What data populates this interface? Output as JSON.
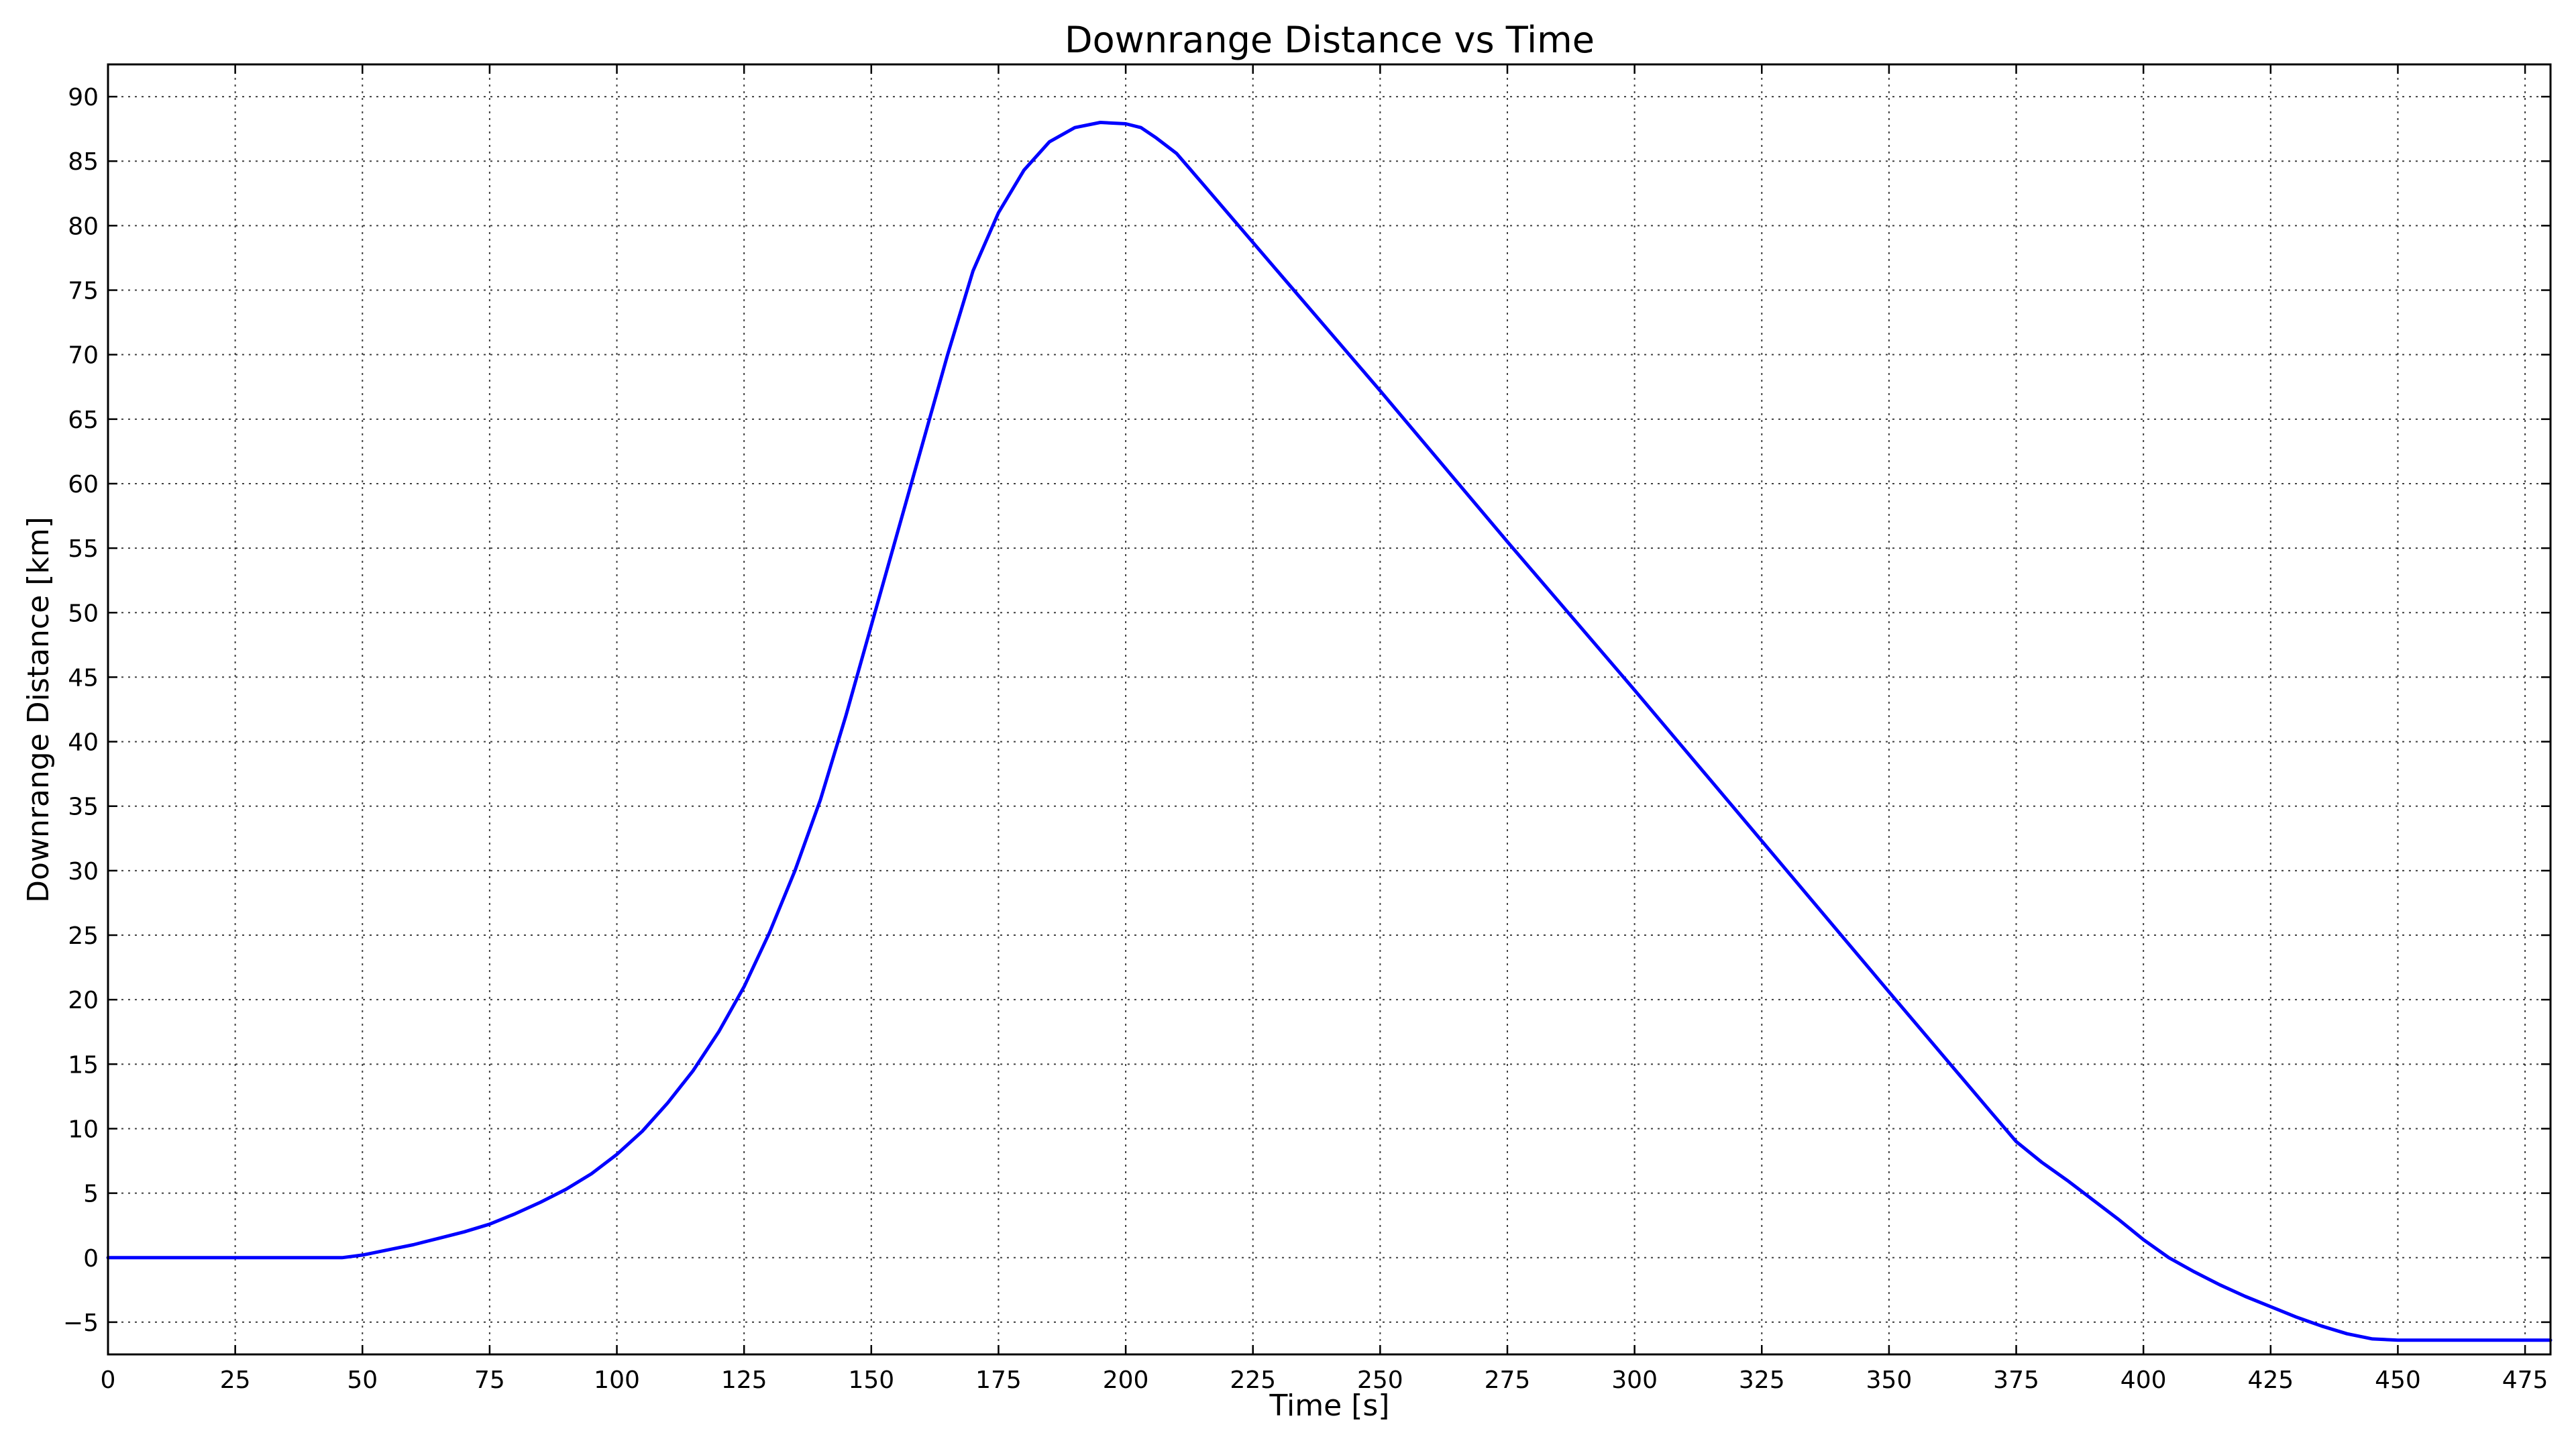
{
  "chart_data": {
    "type": "line",
    "title": "Downrange Distance vs Time",
    "xlabel": "Time [s]",
    "ylabel": "Downrange Distance [km]",
    "xlim": [
      0,
      480
    ],
    "ylim": [
      -7.5,
      92.5
    ],
    "xticks": [
      0,
      25,
      50,
      75,
      100,
      125,
      150,
      175,
      200,
      225,
      250,
      275,
      300,
      325,
      350,
      375,
      400,
      425,
      450,
      475
    ],
    "yticks": [
      -5,
      0,
      5,
      10,
      15,
      20,
      25,
      30,
      35,
      40,
      45,
      50,
      55,
      60,
      65,
      70,
      75,
      80,
      85,
      90
    ],
    "grid": true,
    "series": [
      {
        "color": "#0000ff",
        "x": [
          0,
          10,
          20,
          30,
          40,
          46,
          50,
          55,
          60,
          65,
          70,
          75,
          80,
          85,
          90,
          95,
          100,
          105,
          110,
          115,
          120,
          125,
          130,
          135,
          140,
          145,
          150,
          155,
          160,
          165,
          170,
          175,
          180,
          185,
          190,
          195,
          200,
          203,
          206,
          210,
          215,
          220,
          225,
          250,
          275,
          300,
          325,
          350,
          370,
          375,
          380,
          385,
          390,
          395,
          400,
          405,
          410,
          415,
          420,
          425,
          430,
          435,
          440,
          445,
          450,
          460,
          470,
          480
        ],
        "y": [
          0,
          0,
          0,
          0,
          0,
          0,
          0.2,
          0.6,
          1.0,
          1.5,
          2.0,
          2.6,
          3.4,
          4.3,
          5.3,
          6.5,
          8.0,
          9.8,
          12.0,
          14.5,
          17.5,
          21.0,
          25.2,
          30.0,
          35.5,
          42.0,
          49.0,
          56.0,
          63.0,
          70.0,
          76.5,
          81.0,
          84.3,
          86.5,
          87.6,
          88.0,
          87.9,
          87.6,
          86.8,
          85.6,
          83.3,
          81.0,
          78.7,
          67.2,
          55.5,
          44.0,
          32.3,
          20.6,
          11.3,
          9.0,
          7.4,
          6.0,
          4.5,
          3.0,
          1.4,
          0.0,
          -1.1,
          -2.1,
          -3.0,
          -3.8,
          -4.6,
          -5.3,
          -5.9,
          -6.3,
          -6.4,
          -6.4,
          -6.4,
          -6.4
        ]
      }
    ]
  }
}
